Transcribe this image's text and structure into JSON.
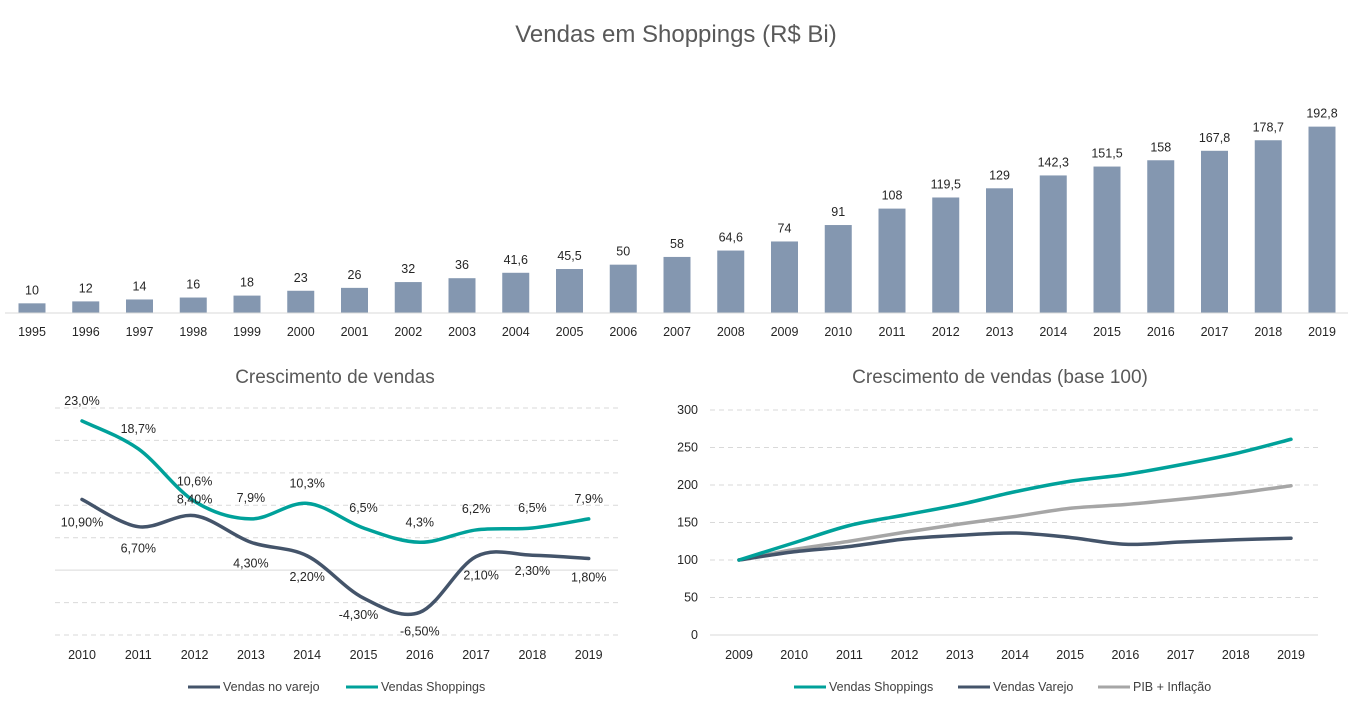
{
  "chart_data": [
    {
      "type": "bar",
      "title": "Vendas em Shoppings (R$ Bi)",
      "categories": [
        "1995",
        "1996",
        "1997",
        "1998",
        "1999",
        "2000",
        "2001",
        "2002",
        "2003",
        "2004",
        "2005",
        "2006",
        "2007",
        "2008",
        "2009",
        "2010",
        "2011",
        "2012",
        "2013",
        "2014",
        "2015",
        "2016",
        "2017",
        "2018",
        "2019"
      ],
      "values": [
        10,
        12,
        14,
        16,
        18,
        23,
        26,
        32,
        36,
        41.6,
        45.5,
        50,
        58,
        64.6,
        74,
        91,
        108,
        119.5,
        129,
        142.3,
        151.5,
        158,
        167.8,
        178.7,
        192.8
      ],
      "value_labels": [
        "10",
        "12",
        "14",
        "16",
        "18",
        "23",
        "26",
        "32",
        "36",
        "41,6",
        "45,5",
        "50",
        "58",
        "64,6",
        "74",
        "91",
        "108",
        "119,5",
        "129",
        "142,3",
        "151,5",
        "158",
        "167,8",
        "178,7",
        "192,8"
      ],
      "ylim": [
        0,
        210
      ],
      "colors": {
        "bar": "#8497B0"
      }
    },
    {
      "type": "line",
      "title": "Crescimento de vendas",
      "categories": [
        "2010",
        "2011",
        "2012",
        "2013",
        "2014",
        "2015",
        "2016",
        "2017",
        "2018",
        "2019"
      ],
      "ylim": [
        -10,
        25
      ],
      "series": [
        {
          "name": "Vendas no varejo",
          "color": "#44546A",
          "values": [
            10.9,
            6.7,
            8.4,
            4.3,
            2.2,
            -4.3,
            -6.5,
            2.1,
            2.3,
            1.8
          ],
          "value_labels": [
            "10,90%",
            "6,70%",
            "8,40%",
            "4,30%",
            "2,20%",
            "-4,30%",
            "-6,50%",
            "2,10%",
            "2,30%",
            "1,80%"
          ]
        },
        {
          "name": "Vendas Shoppings",
          "color": "#00A19A",
          "values": [
            23.0,
            18.7,
            10.6,
            7.9,
            10.3,
            6.5,
            4.3,
            6.2,
            6.5,
            7.9
          ],
          "value_labels": [
            "23,0%",
            "18,7%",
            "10,6%",
            "7,9%",
            "10,3%",
            "6,5%",
            "4,3%",
            "6,2%",
            "6,5%",
            "7,9%"
          ]
        }
      ],
      "legend": "bottom",
      "grid": true
    },
    {
      "type": "line",
      "title": "Crescimento de vendas (base 100)",
      "categories": [
        "2009",
        "2010",
        "2011",
        "2012",
        "2013",
        "2014",
        "2015",
        "2016",
        "2017",
        "2018",
        "2019"
      ],
      "ylim": [
        0,
        300
      ],
      "yticks": [
        "0",
        "50",
        "100",
        "150",
        "200",
        "250",
        "300"
      ],
      "series": [
        {
          "name": "Vendas Shoppings",
          "color": "#00A19A",
          "values": [
            100,
            123,
            146,
            160,
            174,
            191,
            205,
            214,
            227,
            242,
            261
          ]
        },
        {
          "name": "Vendas Varejo",
          "color": "#44546A",
          "values": [
            100,
            111,
            118,
            128,
            133,
            136,
            130,
            121,
            124,
            127,
            129
          ]
        },
        {
          "name": "PIB + Inflação",
          "color": "#A6A6A6",
          "values": [
            100,
            114,
            125,
            137,
            148,
            158,
            169,
            174,
            181,
            189,
            199
          ]
        }
      ],
      "legend": "bottom",
      "grid": true
    }
  ]
}
